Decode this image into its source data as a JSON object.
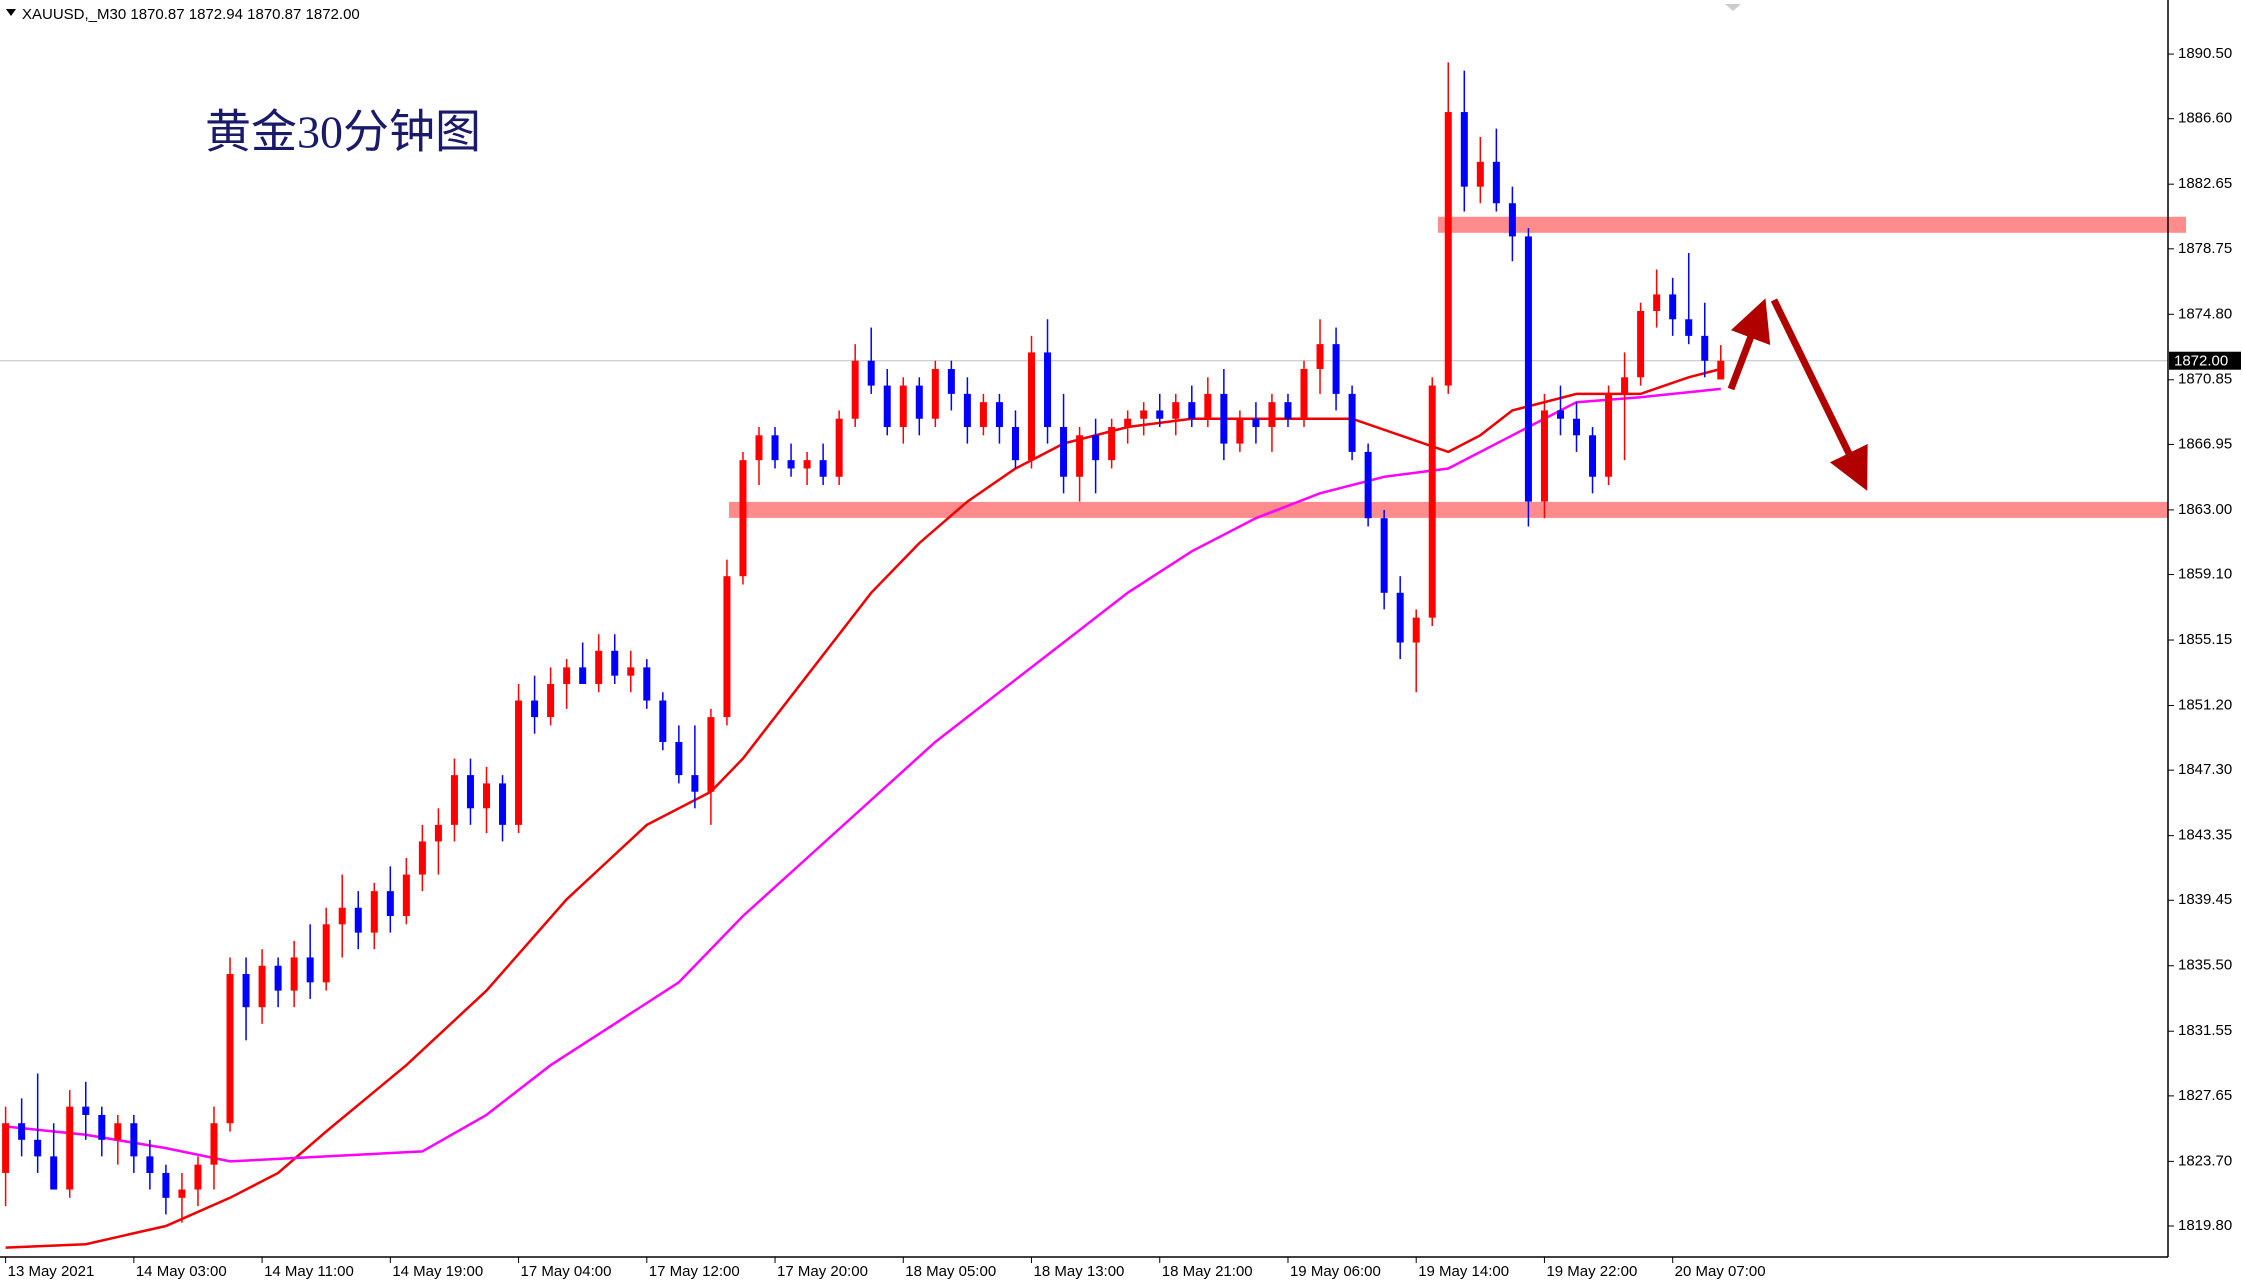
{
  "chart_data": {
    "type": "candlestick",
    "header": "XAUUSD,_M30  1870.87 1872.94 1870.87 1872.00",
    "title": "黄金30分钟图",
    "up_color": "#ff0000",
    "down_color": "#0000ff",
    "xlim": [
      -0.35,
      134.9
    ],
    "ylim": [
      1817.93,
      1893.58
    ],
    "xticks": [
      {
        "value": 0,
        "label": "13 May 2021"
      },
      {
        "value": 8,
        "label": "14 May 03:00"
      },
      {
        "value": 16,
        "label": "14 May 11:00"
      },
      {
        "value": 24,
        "label": "14 May 19:00"
      },
      {
        "value": 32,
        "label": "17 May 04:00"
      },
      {
        "value": 40,
        "label": "17 May 12:00"
      },
      {
        "value": 48,
        "label": "17 May 20:00"
      },
      {
        "value": 56,
        "label": "18 May 05:00"
      },
      {
        "value": 64,
        "label": "18 May 13:00"
      },
      {
        "value": 72,
        "label": "18 May 21:00"
      },
      {
        "value": 80,
        "label": "19 May 06:00"
      },
      {
        "value": 88,
        "label": "19 May 14:00"
      },
      {
        "value": 96,
        "label": "19 May 22:00"
      },
      {
        "value": 104,
        "label": "20 May 07:00"
      }
    ],
    "yticks": [
      {
        "value": 1890.5,
        "label": "1890.50"
      },
      {
        "value": 1886.6,
        "label": "1886.60"
      },
      {
        "value": 1882.65,
        "label": "1882.65"
      },
      {
        "value": 1878.75,
        "label": "1878.75"
      },
      {
        "value": 1874.8,
        "label": "1874.80"
      },
      {
        "value": 1870.85,
        "label": "1870.85"
      },
      {
        "value": 1866.95,
        "label": "1866.95"
      },
      {
        "value": 1863,
        "label": "1863.00"
      },
      {
        "value": 1859.1,
        "label": "1859.10"
      },
      {
        "value": 1855.15,
        "label": "1855.15"
      },
      {
        "value": 1851.2,
        "label": "1851.20"
      },
      {
        "value": 1847.3,
        "label": "1847.30"
      },
      {
        "value": 1843.35,
        "label": "1843.35"
      },
      {
        "value": 1839.45,
        "label": "1839.45"
      },
      {
        "value": 1835.5,
        "label": "1835.50"
      },
      {
        "value": 1831.55,
        "label": "1831.55"
      },
      {
        "value": 1827.65,
        "label": "1827.65"
      },
      {
        "value": 1823.7,
        "label": "1823.70"
      },
      {
        "value": 1819.8,
        "label": "1819.80"
      }
    ],
    "current_price": {
      "value": 1872,
      "label": "1872.00"
    },
    "levels": [
      1880.2,
      1863
    ],
    "ohlc": [
      [
        1823,
        1827,
        1821,
        1826
      ],
      [
        1826,
        1827.5,
        1824,
        1825
      ],
      [
        1825,
        1829,
        1823,
        1824
      ],
      [
        1824,
        1826,
        1822,
        1822
      ],
      [
        1822,
        1828,
        1821.5,
        1827
      ],
      [
        1827,
        1828.5,
        1825,
        1826.5
      ],
      [
        1826.5,
        1827,
        1824,
        1825
      ],
      [
        1825,
        1826.5,
        1823.5,
        1826
      ],
      [
        1826,
        1826.5,
        1823,
        1824
      ],
      [
        1824,
        1825,
        1822,
        1823
      ],
      [
        1823,
        1823.5,
        1820.5,
        1821.5
      ],
      [
        1821.5,
        1823,
        1820,
        1822
      ],
      [
        1822,
        1824,
        1821,
        1823.5
      ],
      [
        1823.5,
        1827,
        1822,
        1826
      ],
      [
        1826,
        1836,
        1825.5,
        1835
      ],
      [
        1835,
        1836,
        1831,
        1833
      ],
      [
        1833,
        1836.5,
        1832,
        1835.5
      ],
      [
        1835.5,
        1836,
        1833,
        1834
      ],
      [
        1834,
        1837,
        1833,
        1836
      ],
      [
        1836,
        1838,
        1833.5,
        1834.5
      ],
      [
        1834.5,
        1839,
        1834,
        1838
      ],
      [
        1838,
        1841,
        1836,
        1839
      ],
      [
        1839,
        1840,
        1836.5,
        1837.5
      ],
      [
        1837.5,
        1840.5,
        1836.5,
        1840
      ],
      [
        1840,
        1841.5,
        1837.5,
        1838.5
      ],
      [
        1838.5,
        1842,
        1838,
        1841
      ],
      [
        1841,
        1844,
        1840,
        1843
      ],
      [
        1843,
        1845,
        1841,
        1844
      ],
      [
        1844,
        1848,
        1843,
        1847
      ],
      [
        1847,
        1848,
        1844,
        1845
      ],
      [
        1845,
        1847.5,
        1843.5,
        1846.5
      ],
      [
        1846.5,
        1847,
        1843,
        1844
      ],
      [
        1844,
        1852.5,
        1843.5,
        1851.5
      ],
      [
        1851.5,
        1853,
        1849.5,
        1850.5
      ],
      [
        1850.5,
        1853.5,
        1850,
        1852.5
      ],
      [
        1852.5,
        1854,
        1851,
        1853.5
      ],
      [
        1853.5,
        1855,
        1852.5,
        1852.5
      ],
      [
        1852.5,
        1855.5,
        1852,
        1854.5
      ],
      [
        1854.5,
        1855.5,
        1852.5,
        1853
      ],
      [
        1853,
        1854.5,
        1852,
        1853.5
      ],
      [
        1853.5,
        1854,
        1851,
        1851.5
      ],
      [
        1851.5,
        1852,
        1848.5,
        1849
      ],
      [
        1849,
        1850,
        1846.5,
        1847
      ],
      [
        1847,
        1850,
        1845,
        1846
      ],
      [
        1846,
        1851,
        1844,
        1850.5
      ],
      [
        1850.5,
        1860,
        1850,
        1859
      ],
      [
        1859,
        1866.5,
        1858.5,
        1866
      ],
      [
        1866,
        1868,
        1864.5,
        1867.5
      ],
      [
        1867.5,
        1868,
        1865.5,
        1866
      ],
      [
        1866,
        1867,
        1865,
        1865.5
      ],
      [
        1865.5,
        1866.5,
        1864.5,
        1866
      ],
      [
        1866,
        1867,
        1864.5,
        1865
      ],
      [
        1865,
        1869,
        1864.5,
        1868.5
      ],
      [
        1868.5,
        1873,
        1868,
        1872
      ],
      [
        1872,
        1874,
        1870,
        1870.5
      ],
      [
        1870.5,
        1871.5,
        1867.5,
        1868
      ],
      [
        1868,
        1871,
        1867,
        1870.5
      ],
      [
        1870.5,
        1871,
        1867.5,
        1868.5
      ],
      [
        1868.5,
        1872,
        1868,
        1871.5
      ],
      [
        1871.5,
        1872,
        1869,
        1870
      ],
      [
        1870,
        1871,
        1867,
        1868
      ],
      [
        1868,
        1870,
        1867.5,
        1869.5
      ],
      [
        1869.5,
        1870,
        1867,
        1868
      ],
      [
        1868,
        1869,
        1865.5,
        1866
      ],
      [
        1866,
        1873.5,
        1865.5,
        1872.5
      ],
      [
        1872.5,
        1874.5,
        1867,
        1868
      ],
      [
        1868,
        1870,
        1864,
        1865
      ],
      [
        1865,
        1868,
        1863.5,
        1867.5
      ],
      [
        1867.5,
        1868.5,
        1864,
        1866
      ],
      [
        1866,
        1868.5,
        1865.5,
        1868
      ],
      [
        1868,
        1869,
        1867,
        1868.5
      ],
      [
        1868.5,
        1869.5,
        1867.5,
        1869
      ],
      [
        1869,
        1870,
        1868,
        1868.5
      ],
      [
        1868.5,
        1870,
        1867.5,
        1869.5
      ],
      [
        1869.5,
        1870.5,
        1868,
        1868.5
      ],
      [
        1868.5,
        1871,
        1868,
        1870
      ],
      [
        1870,
        1871.5,
        1866,
        1867
      ],
      [
        1867,
        1869,
        1866.5,
        1868.5
      ],
      [
        1868.5,
        1869.5,
        1867,
        1868
      ],
      [
        1868,
        1870,
        1866.5,
        1869.5
      ],
      [
        1869.5,
        1870,
        1868,
        1868.5
      ],
      [
        1868.5,
        1872,
        1868,
        1871.5
      ],
      [
        1871.5,
        1874.5,
        1870,
        1873
      ],
      [
        1873,
        1874,
        1869,
        1870
      ],
      [
        1870,
        1870.5,
        1866,
        1866.5
      ],
      [
        1866.5,
        1867,
        1862,
        1862.5
      ],
      [
        1862.5,
        1863,
        1857,
        1858
      ],
      [
        1858,
        1859,
        1854,
        1855
      ],
      [
        1855,
        1857,
        1852,
        1856.5
      ],
      [
        1856.5,
        1871,
        1856,
        1870.5
      ],
      [
        1870.5,
        1890,
        1870,
        1887
      ],
      [
        1887,
        1889.5,
        1881,
        1882.5
      ],
      [
        1882.5,
        1885.5,
        1881.5,
        1884
      ],
      [
        1884,
        1886,
        1881,
        1881.5
      ],
      [
        1881.5,
        1882.5,
        1878,
        1879.5
      ],
      [
        1879.5,
        1880,
        1862,
        1863.5
      ],
      [
        1863.5,
        1870,
        1862.5,
        1869
      ],
      [
        1869,
        1870.5,
        1867.5,
        1868.5
      ],
      [
        1868.5,
        1869.5,
        1866.5,
        1867.5
      ],
      [
        1867.5,
        1868,
        1864,
        1865
      ],
      [
        1865,
        1870.5,
        1864.5,
        1870
      ],
      [
        1870,
        1872.5,
        1866,
        1871
      ],
      [
        1871,
        1875.5,
        1870.5,
        1875
      ],
      [
        1875,
        1877.5,
        1874,
        1876
      ],
      [
        1876,
        1877,
        1873.5,
        1874.5
      ],
      [
        1874.5,
        1878.5,
        1873,
        1873.5
      ],
      [
        1873.5,
        1875.5,
        1871,
        1872
      ],
      [
        1870.87,
        1872.94,
        1870.87,
        1872
      ]
    ],
    "lines": [
      {
        "color": "#ee0000",
        "x": [
          0,
          5,
          10,
          14,
          17,
          20,
          25,
          30,
          35,
          40,
          44,
          46,
          50,
          54,
          57,
          60,
          63,
          66,
          70,
          74,
          80,
          84,
          87,
          90,
          92,
          94,
          98,
          102,
          105,
          107
        ],
        "values": [
          1818.5,
          1818.7,
          1819.8,
          1821.5,
          1823,
          1825.5,
          1829.5,
          1834,
          1839.5,
          1844,
          1846,
          1848,
          1853,
          1858,
          1861,
          1863.5,
          1865.5,
          1867,
          1868,
          1868.5,
          1868.5,
          1868.5,
          1867.5,
          1866.5,
          1867.5,
          1869,
          1870,
          1870,
          1871,
          1871.5
        ]
      },
      {
        "color": "#ff00ff",
        "x": [
          0,
          5,
          10,
          14,
          20,
          26,
          30,
          34,
          38,
          42,
          46,
          50,
          54,
          58,
          62,
          66,
          70,
          74,
          78,
          82,
          86,
          90,
          94,
          98,
          102,
          107
        ],
        "values": [
          1825.8,
          1825.3,
          1824.5,
          1823.7,
          1824,
          1824.3,
          1826.5,
          1829.5,
          1832,
          1834.5,
          1838.5,
          1842,
          1845.5,
          1849,
          1852,
          1855,
          1858,
          1860.5,
          1862.5,
          1864,
          1865,
          1865.5,
          1867.5,
          1869.5,
          1869.8,
          1870.3
        ]
      }
    ]
  }
}
